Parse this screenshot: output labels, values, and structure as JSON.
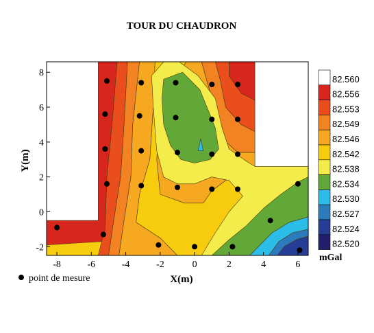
{
  "chart_data": {
    "type": "heatmap",
    "title": "TOUR DU CHAUDRON",
    "xlabel": "X(m)",
    "ylabel": "Y(m)",
    "xlim": [
      -8.6,
      6.6
    ],
    "ylim": [
      -2.5,
      8.6
    ],
    "x_ticks": [
      "-8",
      "-6",
      "-4",
      "-2",
      "0",
      "2",
      "4",
      "6"
    ],
    "y_ticks": [
      "-2",
      "0",
      "2",
      "4",
      "6",
      "8"
    ],
    "x_tick_values": [
      -8,
      -6,
      -4,
      -2,
      0,
      2,
      4,
      6
    ],
    "y_tick_values": [
      -2,
      0,
      2,
      4,
      6,
      8
    ],
    "colorbar": {
      "unit": "mGal",
      "labels": [
        "82.560",
        "82.556",
        "82.553",
        "82.549",
        "82.546",
        "82.542",
        "82.538",
        "82.534",
        "82.530",
        "82.527",
        "82.524",
        "82.520"
      ],
      "colors": [
        "#ffffff",
        "#d7261e",
        "#ea4e1d",
        "#f28222",
        "#f6a821",
        "#f7cc0f",
        "#f4ec4a",
        "#62a838",
        "#2cbce8",
        "#2b7bbd",
        "#263d96",
        "#241f6d"
      ]
    },
    "legend": "point de mesure",
    "points": [
      [
        -8.0,
        -0.9
      ],
      [
        -5.3,
        -1.3
      ],
      [
        -2.1,
        -1.9
      ],
      [
        0.0,
        -2.0
      ],
      [
        2.2,
        -2.0
      ],
      [
        6.1,
        -2.2
      ],
      [
        4.4,
        -0.5
      ],
      [
        6.0,
        1.6
      ],
      [
        -5.1,
        1.6
      ],
      [
        -3.1,
        1.5
      ],
      [
        -1.0,
        1.4
      ],
      [
        1.0,
        1.3
      ],
      [
        2.5,
        1.3
      ],
      [
        -5.2,
        3.6
      ],
      [
        -3.1,
        3.5
      ],
      [
        -1.0,
        3.4
      ],
      [
        1.0,
        3.3
      ],
      [
        2.5,
        3.3
      ],
      [
        -5.2,
        5.6
      ],
      [
        -3.2,
        5.5
      ],
      [
        -1.1,
        5.4
      ],
      [
        1.0,
        5.3
      ],
      [
        2.5,
        5.3
      ],
      [
        -5.1,
        7.5
      ],
      [
        -3.1,
        7.4
      ],
      [
        -1.1,
        7.4
      ],
      [
        1.0,
        7.3
      ],
      [
        2.5,
        7.3
      ]
    ],
    "surveyed_area": [
      [
        -8.6,
        -2.5
      ],
      [
        6.6,
        -2.5
      ],
      [
        6.6,
        2.5
      ],
      [
        3.5,
        2.5
      ],
      [
        3.5,
        8.6
      ],
      [
        -5.6,
        8.6
      ],
      [
        -5.6,
        -0.5
      ],
      [
        -8.6,
        -0.5
      ]
    ],
    "regions": [
      {
        "level": "82.560",
        "poly": [
          [
            3.0,
            7.6
          ],
          [
            3.5,
            7.6
          ],
          [
            3.5,
            8.2
          ],
          [
            3.0,
            8.2
          ]
        ]
      },
      {
        "level": "82.556",
        "poly": [
          [
            -8.6,
            -0.5
          ],
          [
            -5.6,
            -0.5
          ],
          [
            -5.6,
            8.6
          ],
          [
            -4.5,
            8.6
          ],
          [
            -4.8,
            5.0
          ],
          [
            -5.1,
            2.0
          ],
          [
            -5.2,
            -1.0
          ],
          [
            -5.4,
            -1.7
          ],
          [
            -8.6,
            -1.9
          ]
        ]
      },
      {
        "level": "82.556",
        "poly": [
          [
            2.0,
            8.6
          ],
          [
            3.5,
            8.6
          ],
          [
            3.5,
            6.4
          ],
          [
            2.7,
            6.8
          ],
          [
            2.0,
            7.8
          ]
        ]
      },
      {
        "level": "82.553",
        "poly": [
          [
            -4.5,
            8.6
          ],
          [
            -3.9,
            8.6
          ],
          [
            -4.1,
            5.0
          ],
          [
            -4.3,
            2.0
          ],
          [
            -4.7,
            -0.5
          ],
          [
            -5.0,
            -2.5
          ],
          [
            -5.6,
            -2.5
          ],
          [
            -5.4,
            -1.7
          ],
          [
            -5.2,
            -1.0
          ],
          [
            -5.1,
            2.0
          ],
          [
            -4.8,
            5.0
          ]
        ]
      },
      {
        "level": "82.553",
        "poly": [
          [
            1.2,
            8.6
          ],
          [
            2.0,
            8.6
          ],
          [
            2.0,
            7.8
          ],
          [
            2.7,
            6.8
          ],
          [
            3.5,
            6.4
          ],
          [
            3.5,
            4.6
          ],
          [
            2.7,
            5.0
          ],
          [
            1.8,
            6.0
          ],
          [
            1.5,
            7.5
          ]
        ]
      },
      {
        "level": "82.549",
        "poly": [
          [
            -3.9,
            8.6
          ],
          [
            -3.2,
            8.6
          ],
          [
            -3.6,
            5.0
          ],
          [
            -3.7,
            2.0
          ],
          [
            -4.1,
            -0.5
          ],
          [
            -4.4,
            -2.5
          ],
          [
            -5.0,
            -2.5
          ],
          [
            -4.7,
            -0.5
          ],
          [
            -4.3,
            2.0
          ],
          [
            -4.1,
            5.0
          ]
        ]
      },
      {
        "level": "82.549",
        "poly": [
          [
            0.4,
            8.6
          ],
          [
            1.2,
            8.6
          ],
          [
            1.5,
            7.5
          ],
          [
            1.8,
            6.0
          ],
          [
            2.7,
            5.0
          ],
          [
            3.5,
            4.6
          ],
          [
            3.5,
            3.4
          ],
          [
            2.5,
            3.4
          ],
          [
            1.4,
            4.4
          ],
          [
            1.0,
            6.5
          ]
        ]
      },
      {
        "level": "82.546",
        "poly": [
          [
            -3.2,
            8.6
          ],
          [
            -2.3,
            8.6
          ],
          [
            -2.4,
            6.0
          ],
          [
            -2.6,
            3.0
          ],
          [
            -3.2,
            1.0
          ],
          [
            -3.4,
            -0.6
          ],
          [
            -2.0,
            -1.5
          ],
          [
            -1.0,
            -2.5
          ],
          [
            -4.4,
            -2.5
          ],
          [
            -4.1,
            -0.5
          ],
          [
            -3.7,
            2.0
          ],
          [
            -3.6,
            5.0
          ]
        ]
      },
      {
        "level": "82.546",
        "poly": [
          [
            -0.5,
            8.6
          ],
          [
            0.4,
            8.6
          ],
          [
            1.0,
            6.5
          ],
          [
            1.4,
            4.4
          ],
          [
            2.5,
            3.4
          ],
          [
            3.5,
            3.4
          ],
          [
            3.5,
            2.5
          ],
          [
            6.6,
            2.5
          ],
          [
            6.6,
            2.4
          ],
          [
            4.8,
            2.4
          ],
          [
            3.5,
            2.3
          ],
          [
            1.8,
            1.8
          ],
          [
            1.0,
            1.2
          ],
          [
            0.5,
            0.5
          ],
          [
            -0.6,
            0.5
          ],
          [
            -2.0,
            1.0
          ],
          [
            -2.2,
            3.0
          ],
          [
            -2.0,
            6.0
          ]
        ]
      },
      {
        "level": "82.542",
        "poly": [
          [
            -2.3,
            8.6
          ],
          [
            -0.5,
            8.6
          ],
          [
            -2.0,
            6.0
          ],
          [
            -2.2,
            3.0
          ],
          [
            -2.0,
            1.0
          ],
          [
            -0.6,
            0.5
          ],
          [
            0.5,
            0.5
          ],
          [
            1.0,
            1.2
          ],
          [
            1.8,
            1.8
          ],
          [
            3.5,
            2.3
          ],
          [
            4.8,
            2.4
          ],
          [
            6.6,
            2.4
          ],
          [
            6.6,
            1.6
          ],
          [
            5.5,
            1.2
          ],
          [
            4.5,
            0.6
          ],
          [
            3.0,
            -0.4
          ],
          [
            1.5,
            -1.4
          ],
          [
            0.5,
            -2.5
          ],
          [
            -1.0,
            -2.5
          ],
          [
            -2.0,
            -1.5
          ],
          [
            -3.4,
            -0.6
          ],
          [
            -3.2,
            1.0
          ],
          [
            -2.6,
            3.0
          ],
          [
            -2.4,
            6.0
          ]
        ]
      },
      {
        "level": "82.538",
        "poly": [
          [
            -2.5,
            7.8
          ],
          [
            -1.8,
            8.6
          ],
          [
            -0.9,
            8.6
          ],
          [
            0.2,
            7.8
          ],
          [
            1.2,
            6.5
          ],
          [
            1.6,
            4.8
          ],
          [
            2.0,
            3.6
          ],
          [
            3.0,
            2.9
          ],
          [
            3.5,
            2.6
          ],
          [
            6.6,
            2.6
          ],
          [
            6.6,
            1.2
          ],
          [
            5.5,
            0.2
          ],
          [
            4.2,
            -0.6
          ],
          [
            3.0,
            -1.4
          ],
          [
            2.0,
            -2.5
          ],
          [
            0.4,
            -2.5
          ],
          [
            1.2,
            -1.2
          ],
          [
            2.0,
            0.0
          ],
          [
            2.8,
            0.9
          ],
          [
            2.0,
            1.8
          ],
          [
            1.0,
            2.0
          ],
          [
            0.0,
            1.6
          ],
          [
            -1.0,
            1.6
          ],
          [
            -1.8,
            2.0
          ],
          [
            -2.2,
            3.5
          ],
          [
            -2.4,
            6.0
          ]
        ]
      },
      {
        "level": "82.534",
        "poly": [
          [
            -1.8,
            7.6
          ],
          [
            -0.7,
            8.0
          ],
          [
            0.3,
            7.0
          ],
          [
            0.8,
            5.8
          ],
          [
            1.2,
            4.8
          ],
          [
            1.4,
            3.6
          ],
          [
            0.9,
            3.0
          ],
          [
            0.0,
            2.8
          ],
          [
            -0.8,
            3.0
          ],
          [
            -1.4,
            3.8
          ],
          [
            -1.8,
            5.0
          ],
          [
            -1.9,
            6.5
          ]
        ]
      },
      {
        "level": "82.534",
        "poly": [
          [
            1.0,
            -2.5
          ],
          [
            2.0,
            -1.6
          ],
          [
            3.0,
            -0.8
          ],
          [
            4.0,
            0.2
          ],
          [
            5.0,
            1.0
          ],
          [
            6.0,
            1.7
          ],
          [
            6.6,
            2.0
          ],
          [
            6.6,
            -0.3
          ],
          [
            5.5,
            -0.6
          ],
          [
            4.5,
            -1.2
          ],
          [
            3.2,
            -2.5
          ]
        ]
      },
      {
        "level": "82.530",
        "poly": [
          [
            0.35,
            4.2
          ],
          [
            0.5,
            3.5
          ],
          [
            0.2,
            3.5
          ]
        ]
      },
      {
        "level": "82.530",
        "poly": [
          [
            3.2,
            -2.5
          ],
          [
            4.5,
            -1.2
          ],
          [
            5.5,
            -0.6
          ],
          [
            6.6,
            -0.3
          ],
          [
            6.6,
            -1.0
          ],
          [
            5.7,
            -1.2
          ],
          [
            4.9,
            -1.7
          ],
          [
            4.3,
            -2.5
          ]
        ]
      },
      {
        "level": "82.527",
        "poly": [
          [
            4.3,
            -2.5
          ],
          [
            4.9,
            -1.7
          ],
          [
            5.7,
            -1.2
          ],
          [
            6.6,
            -1.0
          ],
          [
            6.6,
            -1.4
          ],
          [
            5.9,
            -1.6
          ],
          [
            5.2,
            -2.0
          ],
          [
            4.8,
            -2.5
          ]
        ]
      },
      {
        "level": "82.524",
        "poly": [
          [
            4.8,
            -2.5
          ],
          [
            5.2,
            -2.0
          ],
          [
            5.9,
            -1.6
          ],
          [
            6.6,
            -1.4
          ],
          [
            6.6,
            -2.5
          ]
        ]
      }
    ],
    "grid": false,
    "legend_position": "bottom-left"
  }
}
